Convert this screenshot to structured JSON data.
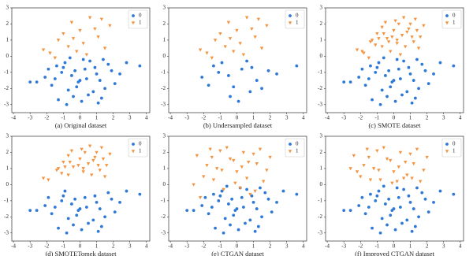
{
  "chart_data": [
    {
      "type": "scatter",
      "title": "(a) Original dataset",
      "xlim": [
        -4.1,
        4.2
      ],
      "ylim": [
        -3.5,
        3
      ],
      "xticks": [
        -4,
        -3,
        -2,
        -1,
        0,
        1,
        2,
        3,
        4
      ],
      "yticks": [
        -3,
        -2,
        -1,
        0,
        1,
        2,
        3
      ],
      "legend": "upper right",
      "series": [
        {
          "name": "0",
          "color": "#2e78d8",
          "marker": "circle",
          "x": [
            -0.5,
            0.3,
            1.2,
            -1.4,
            0.8,
            -0.2,
            1.9,
            -2.1,
            0.1,
            -0.9,
            1.5,
            -1.7,
            0.6,
            -0.4,
            2.4,
            -1.1,
            0.9,
            -0.1,
            1.3,
            -2.6,
            0.4,
            -0.7,
            1.7,
            -1.3,
            0.2,
            -0.3,
            1.0,
            -1.9,
            2.1,
            -0.8,
            0.5,
            -1.5,
            1.4,
            -0.6,
            3.6,
            -3.0,
            0.0,
            1.1,
            -1.0,
            2.8
          ],
          "y": [
            -1.2,
            -0.8,
            -1.5,
            -0.6,
            -2.2,
            -1.9,
            -0.9,
            -1.3,
            -2.8,
            -0.4,
            -2.0,
            -1.8,
            -0.3,
            -2.5,
            -1.1,
            -1.0,
            -0.7,
            -1.6,
            -2.6,
            -1.6,
            -1.4,
            -2.1,
            -0.5,
            -2.7,
            -0.2,
            -0.9,
            -1.1,
            -0.8,
            -1.7,
            -3.0,
            -2.4,
            -1.4,
            -0.2,
            -0.1,
            -0.6,
            -1.6,
            -1.5,
            -2.9,
            -0.7,
            -0.4
          ]
        },
        {
          "name": "1",
          "color": "#f39441",
          "marker": "triangle-down",
          "x": [
            -1.8,
            -1.0,
            -0.5,
            0.2,
            0.9,
            1.5,
            -0.2,
            0.6,
            -1.3,
            1.1,
            0.0,
            -0.7,
            1.8,
            -2.2,
            0.4,
            -0.4,
            1.3,
            -1.5
          ],
          "y": [
            0.2,
            1.4,
            2.1,
            0.8,
            1.7,
            0.5,
            0.3,
            2.4,
            1.0,
            1.2,
            1.6,
            0.6,
            1.9,
            0.4,
            0.1,
            1.1,
            2.3,
            -0.1
          ]
        }
      ]
    },
    {
      "type": "scatter",
      "title": "(b) Undersampled dataset",
      "xlim": [
        -4.1,
        4.2
      ],
      "ylim": [
        -3.5,
        3
      ],
      "xticks": [
        -4,
        -3,
        -2,
        -1,
        0,
        1,
        2,
        3,
        4
      ],
      "yticks": [
        -3,
        -2,
        -1,
        0,
        1,
        2,
        3
      ],
      "legend": "upper right",
      "series": [
        {
          "name": "0",
          "color": "#2e78d8",
          "marker": "circle",
          "x": [
            -0.5,
            0.3,
            1.2,
            -1.4,
            0.8,
            -0.2,
            1.9,
            -2.1,
            0.1,
            -0.9,
            1.5,
            -1.7,
            0.6,
            -0.4,
            2.4,
            -1.1,
            0.9,
            3.6
          ],
          "y": [
            -1.2,
            -0.8,
            -1.5,
            -0.6,
            -2.2,
            -1.9,
            -0.9,
            -1.3,
            -2.8,
            -0.4,
            -2.0,
            -1.8,
            -0.3,
            -2.5,
            -1.1,
            -1.0,
            -0.7,
            -0.6
          ]
        },
        {
          "name": "1",
          "color": "#f39441",
          "marker": "triangle-down",
          "x": [
            -1.8,
            -1.0,
            -0.5,
            0.2,
            0.9,
            1.5,
            -0.2,
            0.6,
            -1.3,
            1.1,
            0.0,
            -0.7,
            1.8,
            -2.2,
            0.4,
            -0.4,
            1.3,
            -1.5
          ],
          "y": [
            0.2,
            1.4,
            2.1,
            0.8,
            1.7,
            0.5,
            0.3,
            2.4,
            1.0,
            1.2,
            1.6,
            0.6,
            1.9,
            0.4,
            0.1,
            1.1,
            2.3,
            -0.1
          ]
        }
      ]
    },
    {
      "type": "scatter",
      "title": "(c) SMOTE dataset",
      "xlim": [
        -4.1,
        4.2
      ],
      "ylim": [
        -3.5,
        3
      ],
      "xticks": [
        -4,
        -3,
        -2,
        -1,
        0,
        1,
        2,
        3,
        4
      ],
      "yticks": [
        -3,
        -2,
        -1,
        0,
        1,
        2,
        3
      ],
      "legend": "upper right",
      "series": [
        {
          "name": "0",
          "color": "#2e78d8",
          "marker": "circle",
          "x": [
            -0.5,
            0.3,
            1.2,
            -1.4,
            0.8,
            -0.2,
            1.9,
            -2.1,
            0.1,
            -0.9,
            1.5,
            -1.7,
            0.6,
            -0.4,
            2.4,
            -1.1,
            0.9,
            -0.1,
            1.3,
            -2.6,
            0.4,
            -0.7,
            1.7,
            -1.3,
            0.2,
            -0.3,
            1.0,
            -1.9,
            2.1,
            -0.8,
            0.5,
            -1.5,
            1.4,
            -0.6,
            3.6,
            -3.0,
            0.0,
            1.1,
            -1.0,
            2.8
          ],
          "y": [
            -1.2,
            -0.8,
            -1.5,
            -0.6,
            -2.2,
            -1.9,
            -0.9,
            -1.3,
            -2.8,
            -0.4,
            -2.0,
            -1.8,
            -0.3,
            -2.5,
            -1.1,
            -1.0,
            -0.7,
            -1.6,
            -2.6,
            -1.6,
            -1.4,
            -2.1,
            -0.5,
            -2.7,
            -0.2,
            -0.9,
            -1.1,
            -0.8,
            -1.7,
            -3.0,
            -2.4,
            -1.4,
            -0.2,
            -0.1,
            -0.6,
            -1.6,
            -1.5,
            -2.9,
            -0.7,
            -0.4
          ]
        },
        {
          "name": "1",
          "color": "#f39441",
          "marker": "triangle-down",
          "x": [
            -1.8,
            -1.0,
            -0.5,
            0.2,
            0.9,
            1.5,
            -0.2,
            0.6,
            -1.3,
            1.1,
            0.0,
            -0.7,
            1.8,
            -2.2,
            0.4,
            -0.4,
            1.3,
            -1.5,
            -1.4,
            -0.7,
            -0.1,
            0.5,
            1.2,
            0.3,
            -1.1,
            0.8,
            1.6,
            -0.3,
            0.1,
            -1.9,
            1.0,
            0.7,
            -0.6,
            1.4,
            -0.9,
            0.2
          ],
          "y": [
            0.2,
            1.4,
            2.1,
            0.8,
            1.7,
            0.5,
            0.3,
            2.4,
            1.0,
            1.2,
            1.6,
            0.6,
            1.9,
            0.4,
            0.1,
            1.1,
            2.3,
            -0.1,
            0.9,
            1.8,
            1.2,
            1.3,
            0.9,
            2.0,
            0.7,
            1.5,
            1.2,
            0.9,
            2.2,
            0.3,
            2.0,
            0.6,
            1.4,
            1.6,
            1.1,
            1.0
          ]
        }
      ]
    },
    {
      "type": "scatter",
      "title": "(d) SMOTETomek dataset",
      "xlim": [
        -4.1,
        4.2
      ],
      "ylim": [
        -3.5,
        3
      ],
      "xticks": [
        -4,
        -3,
        -2,
        -1,
        0,
        1,
        2,
        3,
        4
      ],
      "yticks": [
        -3,
        -2,
        -1,
        0,
        1,
        2,
        3
      ],
      "legend": "upper right",
      "series": [
        {
          "name": "0",
          "color": "#2e78d8",
          "marker": "circle",
          "x": [
            -0.5,
            0.3,
            1.2,
            0.8,
            -0.2,
            1.9,
            -2.1,
            0.1,
            -0.9,
            1.5,
            -1.7,
            -0.4,
            2.4,
            -1.1,
            0.9,
            -0.1,
            1.3,
            -2.6,
            0.4,
            -0.7,
            1.7,
            -1.3,
            -0.3,
            1.0,
            -1.9,
            2.1,
            -0.8,
            0.5,
            -1.5,
            3.6,
            -3.0,
            0.0,
            1.1,
            -1.0,
            2.8
          ],
          "y": [
            -1.2,
            -0.8,
            -1.5,
            -2.2,
            -1.9,
            -0.9,
            -1.3,
            -2.8,
            -0.4,
            -2.0,
            -1.8,
            -2.5,
            -1.1,
            -1.0,
            -0.7,
            -1.6,
            -2.6,
            -1.6,
            -1.4,
            -2.1,
            -0.5,
            -2.7,
            -0.9,
            -1.1,
            -0.8,
            -1.7,
            -3.0,
            -2.4,
            -1.4,
            -0.6,
            -1.6,
            -1.5,
            -2.9,
            -0.7,
            -0.4
          ]
        },
        {
          "name": "1",
          "color": "#f39441",
          "marker": "triangle-down",
          "x": [
            -1.0,
            -0.5,
            0.2,
            0.9,
            1.5,
            0.6,
            -1.3,
            1.1,
            0.0,
            -0.7,
            1.8,
            -2.2,
            -0.4,
            1.3,
            -1.4,
            -0.7,
            -0.1,
            0.5,
            1.2,
            0.3,
            -1.1,
            0.8,
            1.6,
            0.1,
            -1.9,
            1.0,
            0.7,
            -0.6,
            1.4,
            -0.9,
            0.2
          ],
          "y": [
            1.4,
            2.1,
            0.8,
            1.7,
            0.5,
            2.4,
            1.0,
            1.2,
            1.6,
            0.6,
            1.9,
            0.4,
            1.1,
            2.3,
            0.9,
            1.8,
            1.2,
            1.3,
            0.9,
            2.0,
            0.7,
            1.5,
            1.2,
            2.2,
            0.3,
            2.0,
            0.6,
            1.4,
            1.6,
            1.1,
            1.0
          ]
        }
      ]
    },
    {
      "type": "scatter",
      "title": "(e) CTGAN dataset",
      "xlim": [
        -4.1,
        4.2
      ],
      "ylim": [
        -3.5,
        3
      ],
      "xticks": [
        -4,
        -3,
        -2,
        -1,
        0,
        1,
        2,
        3,
        4
      ],
      "yticks": [
        -3,
        -2,
        -1,
        0,
        1,
        2,
        3
      ],
      "legend": "upper right",
      "series": [
        {
          "name": "0",
          "color": "#2e78d8",
          "marker": "circle",
          "x": [
            -0.5,
            0.3,
            1.2,
            -1.4,
            0.8,
            -0.2,
            1.9,
            -2.1,
            0.1,
            -0.9,
            1.5,
            -1.7,
            0.6,
            -0.4,
            2.4,
            -1.1,
            0.9,
            -0.1,
            1.3,
            -2.6,
            0.4,
            -0.7,
            1.7,
            -1.3,
            0.2,
            -0.3,
            1.0,
            -1.9,
            2.1,
            -0.8,
            0.5,
            -1.5,
            1.4,
            -0.6,
            3.6,
            -3.0,
            0.0,
            1.1,
            -1.0,
            2.8
          ],
          "y": [
            -1.2,
            -0.8,
            -1.5,
            -0.6,
            -2.2,
            -1.9,
            -0.9,
            -1.3,
            -2.8,
            -0.4,
            -2.0,
            -1.8,
            -0.3,
            -2.5,
            -1.1,
            -1.0,
            -0.7,
            -1.6,
            -2.6,
            -1.6,
            -1.4,
            -2.1,
            -0.5,
            -2.7,
            -0.2,
            -0.9,
            -1.1,
            -0.8,
            -1.7,
            -3.0,
            -2.4,
            -1.4,
            -0.2,
            -0.1,
            -0.6,
            -1.6,
            -1.5,
            -2.9,
            -0.7,
            -0.4
          ]
        },
        {
          "name": "1",
          "color": "#f39441",
          "marker": "triangle-down",
          "x": [
            -2.4,
            -2.0,
            -1.6,
            -1.2,
            -0.8,
            -0.4,
            0.0,
            0.4,
            0.8,
            1.2,
            1.6,
            2.0,
            -2.2,
            -1.4,
            -0.6,
            0.2,
            1.0,
            1.8,
            -1.8,
            -1.0,
            -0.2,
            0.6,
            1.4,
            -2.6,
            -0.9,
            0.3,
            1.1,
            -1.5,
            0.7,
            -0.1
          ],
          "y": [
            1.8,
            0.5,
            2.2,
            1.0,
            -0.3,
            1.6,
            0.8,
            2.0,
            -0.6,
            1.3,
            0.2,
            1.7,
            -0.8,
            0.3,
            2.3,
            -0.2,
            1.9,
            0.9,
            1.2,
            2.1,
            1.5,
            0.4,
            2.2,
            0.0,
            0.9,
            1.1,
            -0.4,
            1.7,
            1.4,
            0.1
          ]
        }
      ]
    },
    {
      "type": "scatter",
      "title": "(f) Improved CTGAN dataset",
      "xlim": [
        -4.1,
        4.2
      ],
      "ylim": [
        -3.5,
        3
      ],
      "xticks": [
        -4,
        -3,
        -2,
        -1,
        0,
        1,
        2,
        3,
        4
      ],
      "yticks": [
        -3,
        -2,
        -1,
        0,
        1,
        2,
        3
      ],
      "legend": "upper right",
      "series": [
        {
          "name": "0",
          "color": "#2e78d8",
          "marker": "circle",
          "x": [
            -0.5,
            0.3,
            1.2,
            -1.4,
            0.8,
            -0.2,
            1.9,
            -2.1,
            0.1,
            -0.9,
            1.5,
            -1.7,
            0.6,
            -0.4,
            2.4,
            -1.1,
            0.9,
            -0.1,
            1.3,
            -2.6,
            0.4,
            -0.7,
            1.7,
            -1.3,
            0.2,
            -0.3,
            1.0,
            -1.9,
            2.1,
            -0.8,
            0.5,
            -1.5,
            1.4,
            -0.6,
            3.6,
            -3.0,
            0.0,
            1.1,
            -1.0,
            2.8
          ],
          "y": [
            -1.2,
            -0.8,
            -1.5,
            -0.6,
            -2.2,
            -1.9,
            -0.9,
            -1.3,
            -2.8,
            -0.4,
            -2.0,
            -1.8,
            -0.3,
            -2.5,
            -1.1,
            -1.0,
            -0.7,
            -1.6,
            -2.6,
            -1.6,
            -1.4,
            -2.1,
            -0.5,
            -2.7,
            -0.2,
            -0.9,
            -1.1,
            -0.8,
            -1.7,
            -3.0,
            -2.4,
            -1.4,
            -0.2,
            -0.1,
            -0.6,
            -1.6,
            -1.5,
            -2.9,
            -0.7,
            -0.4
          ]
        },
        {
          "name": "1",
          "color": "#f39441",
          "marker": "triangle-down",
          "x": [
            -2.4,
            -2.0,
            -1.6,
            -1.2,
            -0.8,
            -0.4,
            0.0,
            0.4,
            0.8,
            1.2,
            1.6,
            2.0,
            -2.2,
            -1.4,
            -0.6,
            0.2,
            1.0,
            1.8,
            -1.8,
            -1.0,
            -0.2,
            0.6,
            1.4,
            -2.6,
            -0.9,
            0.3,
            1.1,
            -1.5,
            0.7,
            -0.1
          ],
          "y": [
            1.8,
            0.5,
            2.2,
            1.0,
            0.3,
            1.6,
            0.8,
            2.0,
            0.6,
            1.3,
            0.2,
            1.7,
            0.8,
            0.3,
            2.3,
            0.2,
            1.9,
            0.9,
            1.2,
            2.1,
            1.5,
            0.4,
            2.2,
            1.0,
            0.9,
            1.1,
            0.4,
            1.7,
            1.4,
            0.1
          ]
        }
      ]
    }
  ]
}
